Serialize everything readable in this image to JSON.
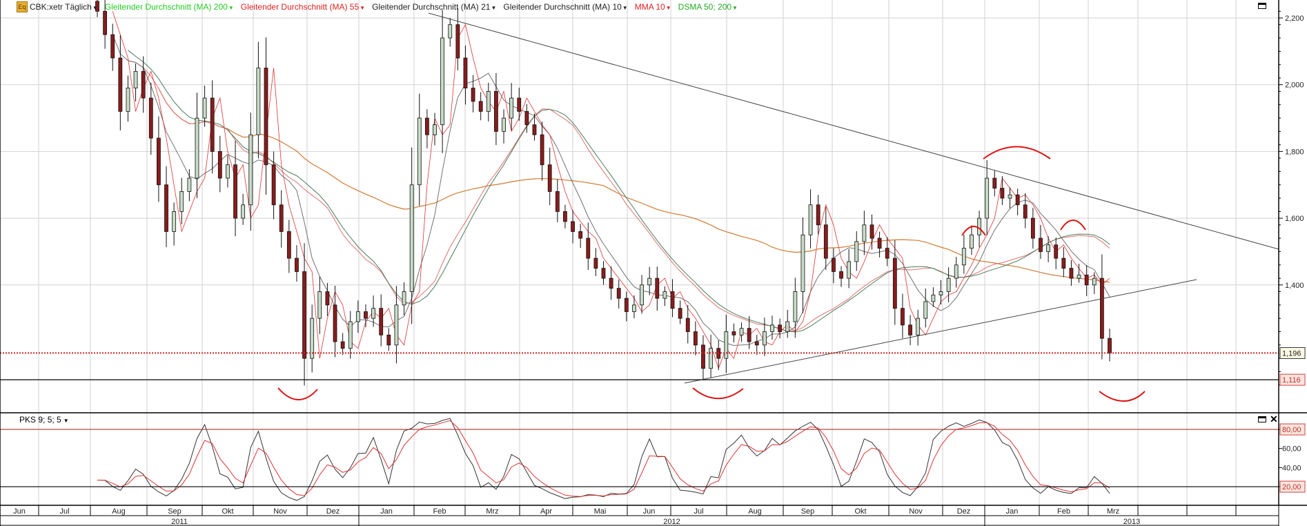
{
  "header": {
    "symbol_label": "CBK:xetr Täglich",
    "icon": "eq-icon",
    "indicators": [
      {
        "label": "Gleitender Durchschnitt (MA) 200",
        "color": "#22cc22"
      },
      {
        "label": "Gleitender Durchschnitt (MA) 55",
        "color": "#dd2222"
      },
      {
        "label": "Gleitender Durchschnitt (MA) 21",
        "color": "#222222"
      },
      {
        "label": "Gleitender Durchschnitt (MA) 10",
        "color": "#222222"
      },
      {
        "label": "MMA 10",
        "color": "#dd2222"
      },
      {
        "label": "DSMA 50; 200",
        "color": "#22aa22"
      }
    ]
  },
  "oscillator": {
    "label": "PKS 9; 5; 5"
  },
  "chart_data": {
    "type": "candlestick",
    "price_axis": {
      "ticks": [
        "2,200",
        "2,000",
        "1,800",
        "1,600",
        "1,400"
      ],
      "tick_values": [
        2200,
        2000,
        1800,
        1600,
        1400
      ],
      "ylim": [
        1040,
        2250
      ]
    },
    "price_markers": [
      {
        "label": "1,196",
        "value": 1196,
        "style": "dotted",
        "color": "#cc2222"
      },
      {
        "label": "1,116",
        "value": 1116,
        "style": "solid",
        "color": "#000000"
      }
    ],
    "oscillator_axis": {
      "ticks": [
        "80,00",
        "60,00",
        "40,00",
        "20,00"
      ],
      "tick_values": [
        80,
        60,
        40,
        20
      ],
      "ylim": [
        0,
        100
      ]
    },
    "months": [
      {
        "label": "Jun",
        "year": "2011",
        "closes": []
      },
      {
        "label": "Jul",
        "year": "2011",
        "closes": []
      },
      {
        "label": "Aug",
        "year": "2011",
        "closes": [
          2220,
          2150,
          2080,
          1920,
          1990,
          2040,
          1960
        ]
      },
      {
        "label": "Sep",
        "year": "2011",
        "closes": [
          1840,
          1700,
          1560,
          1620,
          1680,
          1720,
          1900,
          1960
        ]
      },
      {
        "label": "Okt",
        "year": "2011",
        "closes": [
          1800,
          1720,
          1760,
          1600,
          1640,
          1850,
          2050
        ]
      },
      {
        "label": "Nov",
        "year": "2011",
        "closes": [
          1760,
          1640,
          1560,
          1480,
          1440,
          1180,
          1300,
          1380
        ]
      },
      {
        "label": "Dez",
        "year": "2011",
        "closes": [
          1340,
          1230,
          1210,
          1290,
          1320,
          1300,
          1330
        ]
      },
      {
        "label": "Jan",
        "year": "2012",
        "closes": [
          1250,
          1220,
          1340,
          1380,
          1700,
          1900,
          1850
        ]
      },
      {
        "label": "Feb",
        "year": "2012",
        "closes": [
          1880,
          2140,
          2180,
          2080,
          1990,
          1950,
          1920
        ]
      },
      {
        "label": "Mrz",
        "year": "2012",
        "closes": [
          1980,
          1860,
          1900,
          1960,
          1920,
          1880,
          1850
        ]
      },
      {
        "label": "Apr",
        "year": "2012",
        "closes": [
          1760,
          1680,
          1620,
          1590,
          1560,
          1540
        ]
      },
      {
        "label": "Mai",
        "year": "2012",
        "closes": [
          1480,
          1450,
          1420,
          1390,
          1360,
          1320,
          1340
        ]
      },
      {
        "label": "Jun",
        "year": "2012",
        "closes": [
          1400,
          1420,
          1360,
          1380,
          1330
        ]
      },
      {
        "label": "Jul",
        "year": "2012",
        "closes": [
          1300,
          1260,
          1220,
          1150,
          1210,
          1180,
          1260
        ]
      },
      {
        "label": "Aug",
        "year": "2012",
        "closes": [
          1250,
          1270,
          1230,
          1220,
          1260,
          1280,
          1260
        ]
      },
      {
        "label": "Sep",
        "year": "2012",
        "closes": [
          1290,
          1380,
          1550,
          1640,
          1580,
          1480
        ]
      },
      {
        "label": "Okt",
        "year": "2012",
        "closes": [
          1440,
          1420,
          1470,
          1530,
          1580,
          1540,
          1510
        ]
      },
      {
        "label": "Nov",
        "year": "2012",
        "closes": [
          1480,
          1330,
          1280,
          1250,
          1300,
          1350,
          1370
        ]
      },
      {
        "label": "Dez",
        "year": "2012",
        "closes": [
          1380,
          1420,
          1460,
          1510,
          1550
        ]
      },
      {
        "label": "Jan",
        "year": "2013",
        "closes": [
          1600,
          1720,
          1690,
          1660,
          1670,
          1640,
          1600
        ]
      },
      {
        "label": "Feb",
        "year": "2013",
        "closes": [
          1540,
          1500,
          1520,
          1480,
          1450,
          1420
        ]
      },
      {
        "label": "Mrz",
        "year": "2013",
        "closes": [
          1430,
          1400,
          1420,
          1240,
          1196
        ]
      }
    ],
    "years": [
      "2011",
      "2012",
      "2013"
    ],
    "colors": {
      "up": "#c8dcc8",
      "down": "#8a1c1c",
      "ma200": "#d07a30",
      "ma55": "#e07070",
      "ma21": "#707070",
      "ma10": "#303030",
      "mma10": "#e03030",
      "dsma": "#4a7a5a",
      "stoch_k": "#333333",
      "stoch_d": "#dd3333",
      "annotation": "#dd1111"
    },
    "grid": true
  }
}
